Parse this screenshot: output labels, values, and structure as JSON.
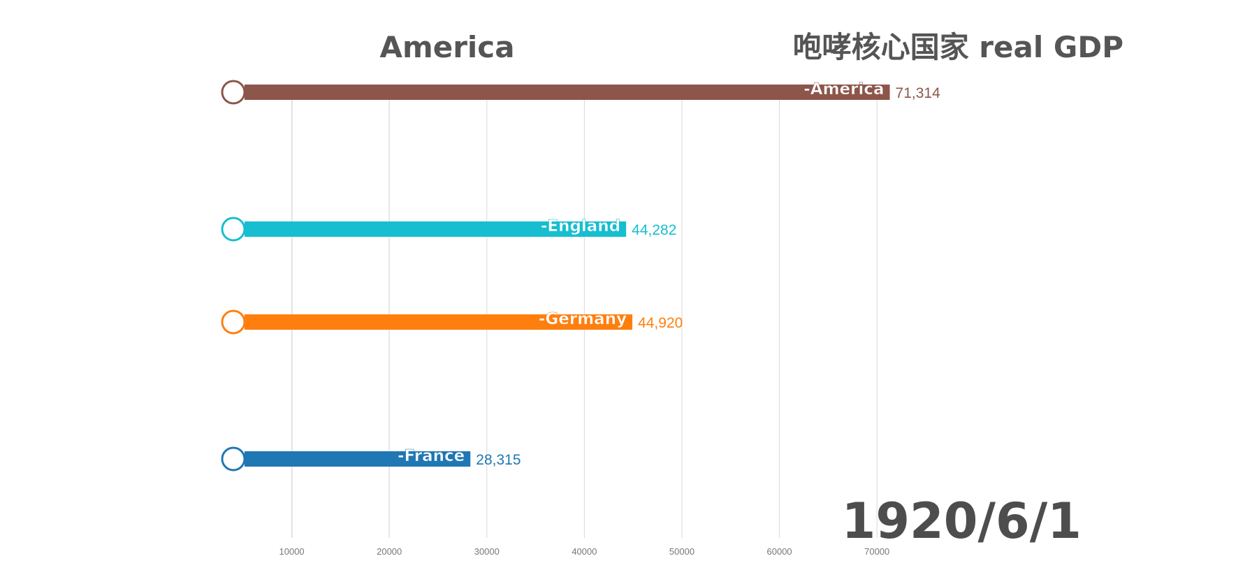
{
  "header": {
    "leader": "America",
    "title": "咆哮核心国家 real GDP",
    "date": "1920/6/1"
  },
  "chart_data": {
    "type": "bar",
    "orientation": "horizontal",
    "title": "咆哮核心国家 real GDP",
    "xlim": [
      0,
      73000
    ],
    "x_ticks": [
      "10000",
      "20000",
      "30000",
      "40000",
      "50000",
      "60000",
      "70000"
    ],
    "x_tick_values": [
      10000,
      20000,
      30000,
      40000,
      50000,
      60000,
      70000
    ],
    "grid": true,
    "series": [
      {
        "name": "-America",
        "value": 71314,
        "value_label": "71,314",
        "color": "#8c564b"
      },
      {
        "name": "-England",
        "value": 44282,
        "value_label": "44,282",
        "color": "#17becf"
      },
      {
        "name": "-Germany",
        "value": 44920,
        "value_label": "44,920",
        "color": "#ff7f0e"
      },
      {
        "name": "-France",
        "value": 28315,
        "value_label": "28,315",
        "color": "#1f77b4"
      }
    ]
  },
  "colors": {
    "title_text": "#555555",
    "grid": "#d9d9d9",
    "tick_text": "#777777"
  }
}
